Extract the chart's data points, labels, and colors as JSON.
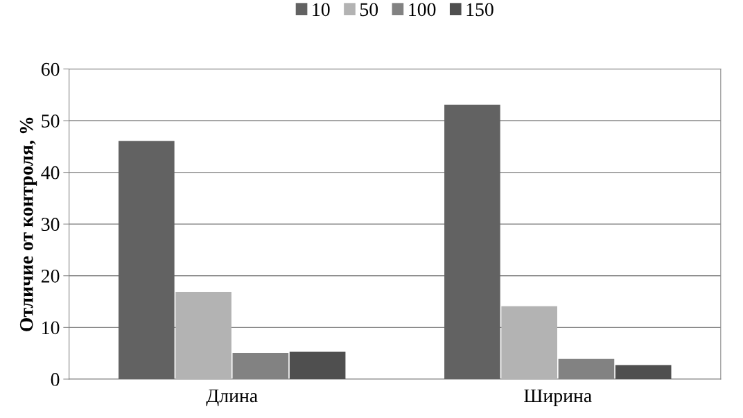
{
  "chart_data": {
    "type": "bar",
    "ylabel": "Отличие от контроля, %",
    "categories": [
      "Длина",
      "Ширина"
    ],
    "series": [
      {
        "name": "10",
        "color": "#626262",
        "values": [
          46.1,
          53.1
        ]
      },
      {
        "name": "50",
        "color": "#b3b3b3",
        "values": [
          16.9,
          14.1
        ]
      },
      {
        "name": "100",
        "color": "#828282",
        "values": [
          5.1,
          3.9
        ]
      },
      {
        "name": "150",
        "color": "#4f4f4f",
        "values": [
          5.3,
          2.7
        ]
      }
    ],
    "ylim": [
      0,
      60
    ],
    "yticks": [
      0,
      10,
      20,
      30,
      40,
      50,
      60
    ],
    "grid": "y",
    "legend": "top"
  }
}
